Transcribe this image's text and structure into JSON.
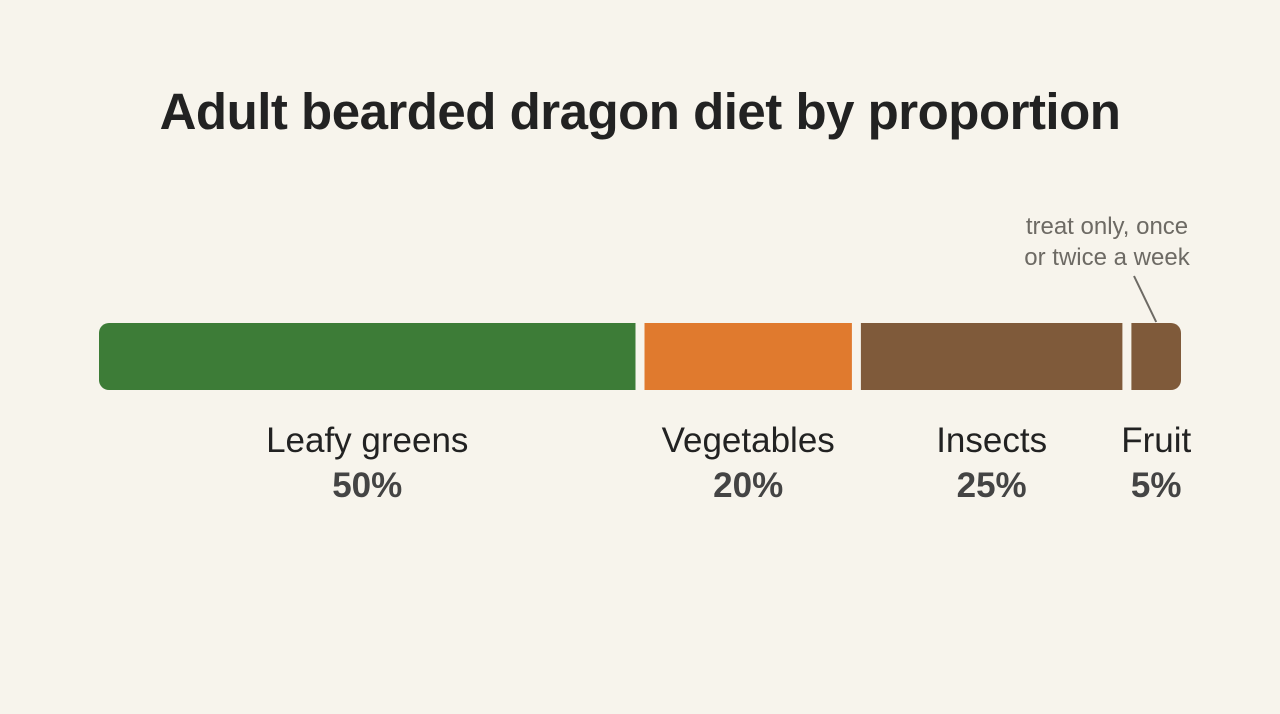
{
  "chart_data": {
    "type": "bar",
    "orientation": "horizontal-stacked",
    "title": "Adult bearded dragon diet by proportion",
    "unit": "%",
    "categories": [
      "Leafy greens",
      "Vegetables",
      "Insects",
      "Fruit"
    ],
    "values": [
      50,
      20,
      25,
      5
    ],
    "value_labels": [
      "50%",
      "20%",
      "25%",
      "5%"
    ],
    "colors": [
      "#3d7c37",
      "#e07a2e",
      "#7f5a3a",
      "#7f5a3a"
    ],
    "annotation": {
      "target": "Fruit",
      "lines": [
        "treat only, once",
        "or twice a week"
      ]
    },
    "xlim": [
      0,
      100
    ],
    "grid": false,
    "legend": "none"
  }
}
